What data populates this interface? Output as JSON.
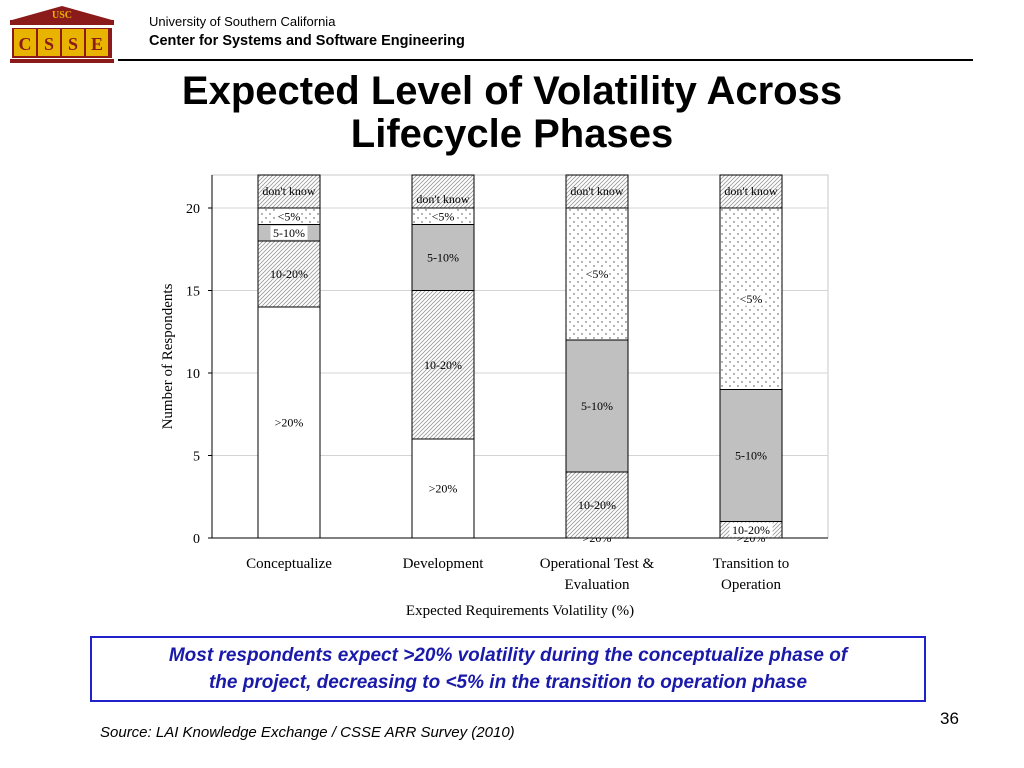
{
  "header": {
    "logo_text": "USC CSSE",
    "logo_top": "USC",
    "logo_letters": [
      "C",
      "S",
      "S",
      "E"
    ],
    "org_line1": "University of Southern California",
    "org_line2": "Center for Systems and Software Engineering"
  },
  "slide": {
    "title_line1": "Expected Level of Volatility Across",
    "title_line2": "Lifecycle Phases",
    "callout_line1": "Most respondents expect >20% volatility during the conceptualize phase of",
    "callout_line2": "the project, decreasing to <5% in the transition to operation phase",
    "page_number": "36",
    "source": "Source: LAI Knowledge Exchange / CSSE ARR Survey (2010)"
  },
  "colors": {
    "callout_border": "#2222cc",
    "callout_text": "#1a1aaa",
    "bar_gray": "#c0c0c0",
    "logo_red": "#8b1a1a",
    "logo_gold": "#e8b400"
  },
  "chart_data": {
    "type": "bar",
    "stacked": true,
    "categories": [
      "Conceptualize",
      "Development",
      "Operational Test & Evaluation",
      "Transition to Operation"
    ],
    "category_label_lines": [
      [
        "Conceptualize"
      ],
      [
        "Development"
      ],
      [
        "Operational Test &",
        "Evaluation"
      ],
      [
        "Transition to",
        "Operation"
      ]
    ],
    "series": [
      {
        "name": ">20%",
        "values": [
          14,
          6,
          0,
          0
        ]
      },
      {
        "name": "10-20%",
        "values": [
          4,
          9,
          4,
          1
        ]
      },
      {
        "name": "5-10%",
        "values": [
          1,
          4,
          8,
          8
        ]
      },
      {
        "name": "<5%",
        "values": [
          1,
          1,
          8,
          11
        ]
      },
      {
        "name": "don't know",
        "values": [
          2,
          2,
          2,
          2
        ]
      }
    ],
    "segment_fills": {
      ">20%": "white",
      "10-20%": "diagonal-hatch",
      "5-10%": "gray",
      "<5%": "dots",
      "don't know": "diagonal-hatch"
    },
    "xlabel": "Expected Requirements Volatility (%)",
    "ylabel": "Number of Respondents",
    "ylim": [
      0,
      22
    ],
    "yticks": [
      0,
      5,
      10,
      15,
      20
    ],
    "grid": true,
    "legend": "none"
  }
}
